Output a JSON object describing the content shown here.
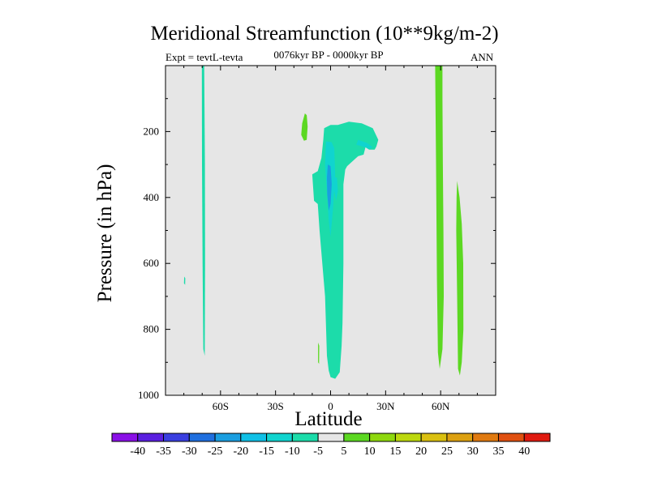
{
  "chart_data": {
    "type": "heatmap",
    "title": "Meridional Streamfunction (10**9kg/m-2)",
    "left_label": "Expt = tevtL-tevta",
    "center_label": "0076kyr BP - 0000kyr BP",
    "right_label": "ANN",
    "xlabel": "Latitude",
    "ylabel": "Pressure (in hPa)",
    "xlim": [
      -90,
      90
    ],
    "ylim": [
      1000,
      0
    ],
    "x_ticks": [
      {
        "value": -60,
        "label": "60S"
      },
      {
        "value": -30,
        "label": "30S"
      },
      {
        "value": 0,
        "label": "0"
      },
      {
        "value": 30,
        "label": "30N"
      },
      {
        "value": 60,
        "label": "60N"
      }
    ],
    "y_ticks": [
      {
        "value": 200,
        "label": "200"
      },
      {
        "value": 400,
        "label": "400"
      },
      {
        "value": 600,
        "label": "600"
      },
      {
        "value": 800,
        "label": "800"
      },
      {
        "value": 1000,
        "label": "1000"
      }
    ],
    "background_color": "#e6e6e6",
    "contour_levels": [
      -40,
      -35,
      -30,
      -25,
      -20,
      -15,
      -10,
      -5,
      5,
      10,
      15,
      20,
      25,
      30,
      35,
      40
    ],
    "colorbar_colors": [
      "#8a10e6",
      "#5a1fe0",
      "#3a3fe0",
      "#1f6fdf",
      "#1a9ee0",
      "#10c0e6",
      "#10d4cf",
      "#1cdcaa",
      "#e6e6e6",
      "#5cd822",
      "#8ed80e",
      "#bcd80e",
      "#dac010",
      "#dca010",
      "#e07a10",
      "#e05010",
      "#e01a10"
    ],
    "regions": [
      {
        "name": "min10-5",
        "color": "#1cdcaa",
        "points": [
          [
            -70.2,
            0
          ],
          [
            -68.9,
            0
          ],
          [
            -68.5,
            300
          ],
          [
            -68.4,
            600
          ],
          [
            -68.6,
            880
          ],
          [
            -69.4,
            860
          ],
          [
            -69.8,
            600
          ],
          [
            -70.1,
            300
          ]
        ]
      },
      {
        "name": "min10-5",
        "color": "#1cdcaa",
        "points": [
          [
            -79.8,
            640
          ],
          [
            -79.2,
            645
          ],
          [
            -79.3,
            665
          ],
          [
            -79.9,
            660
          ]
        ]
      },
      {
        "name": "min10-5",
        "color": "#1cdcaa",
        "points": [
          [
            -3.5,
            190
          ],
          [
            0,
            180
          ],
          [
            4,
            180
          ],
          [
            10,
            170
          ],
          [
            17,
            175
          ],
          [
            23,
            190
          ],
          [
            26,
            225
          ],
          [
            25,
            245
          ],
          [
            24,
            255
          ],
          [
            21,
            255
          ],
          [
            19,
            248
          ],
          [
            18,
            270
          ],
          [
            15,
            275
          ],
          [
            12,
            290
          ],
          [
            9,
            305
          ],
          [
            8,
            315
          ],
          [
            7,
            360
          ],
          [
            7,
            600
          ],
          [
            6.5,
            780
          ],
          [
            6,
            850
          ],
          [
            5,
            930
          ],
          [
            2.5,
            950
          ],
          [
            0,
            945
          ],
          [
            -1,
            925
          ],
          [
            -2,
            880
          ],
          [
            -3,
            700
          ],
          [
            -4.5,
            600
          ],
          [
            -6,
            500
          ],
          [
            -7,
            420
          ],
          [
            -9,
            410
          ],
          [
            -10,
            330
          ],
          [
            -7,
            320
          ],
          [
            -5,
            280
          ],
          [
            -4,
            225
          ]
        ]
      },
      {
        "name": "min15-10",
        "color": "#10d4cf",
        "points": [
          [
            -2.5,
            230
          ],
          [
            0.5,
            232
          ],
          [
            2,
            250
          ],
          [
            2.5,
            330
          ],
          [
            1.5,
            420
          ],
          [
            0,
            520
          ],
          [
            -1,
            470
          ],
          [
            -2,
            380
          ],
          [
            -3,
            300
          ]
        ]
      },
      {
        "name": "min15-10",
        "color": "#10d4cf",
        "points": [
          [
            15,
            225
          ],
          [
            20,
            235
          ],
          [
            23,
            248
          ],
          [
            21,
            252
          ],
          [
            18,
            246
          ],
          [
            14,
            240
          ]
        ]
      },
      {
        "name": "min15-10",
        "color": "#10d4cf",
        "points": [
          [
            2,
            338
          ],
          [
            3.5,
            340
          ],
          [
            4,
            380
          ],
          [
            3,
            410
          ],
          [
            2,
            380
          ]
        ]
      },
      {
        "name": "min20-15",
        "color": "#1a9ee0",
        "points": [
          [
            -1.5,
            300
          ],
          [
            0,
            305
          ],
          [
            0.6,
            360
          ],
          [
            0,
            420
          ],
          [
            -1,
            440
          ],
          [
            -1.8,
            390
          ],
          [
            -2,
            340
          ]
        ]
      },
      {
        "name": "max5-10",
        "color": "#5cd822",
        "points": [
          [
            -14,
            145
          ],
          [
            -13,
            150
          ],
          [
            -12.5,
            185
          ],
          [
            -13,
            225
          ],
          [
            -14.5,
            228
          ],
          [
            -16,
            210
          ],
          [
            -15.5,
            175
          ]
        ]
      },
      {
        "name": "max5-10",
        "color": "#5cd822",
        "points": [
          [
            -6.8,
            840
          ],
          [
            -6.2,
            850
          ],
          [
            -6.3,
            905
          ],
          [
            -6.8,
            900
          ]
        ]
      },
      {
        "name": "max5-10",
        "color": "#5cd822",
        "points": [
          [
            57,
            0
          ],
          [
            61,
            0
          ],
          [
            61,
            100
          ],
          [
            61.2,
            300
          ],
          [
            61.5,
            500
          ],
          [
            61.7,
            700
          ],
          [
            61,
            860
          ],
          [
            59.5,
            920
          ],
          [
            58.5,
            870
          ],
          [
            58,
            650
          ],
          [
            57.5,
            300
          ]
        ]
      },
      {
        "name": "max5-10",
        "color": "#5cd822",
        "points": [
          [
            69,
            350
          ],
          [
            70.3,
            400
          ],
          [
            71.5,
            480
          ],
          [
            72.3,
            600
          ],
          [
            72.4,
            800
          ],
          [
            71.5,
            900
          ],
          [
            70.5,
            940
          ],
          [
            69.5,
            920
          ],
          [
            69,
            700
          ],
          [
            68.5,
            500
          ],
          [
            68.7,
            400
          ]
        ]
      }
    ]
  }
}
